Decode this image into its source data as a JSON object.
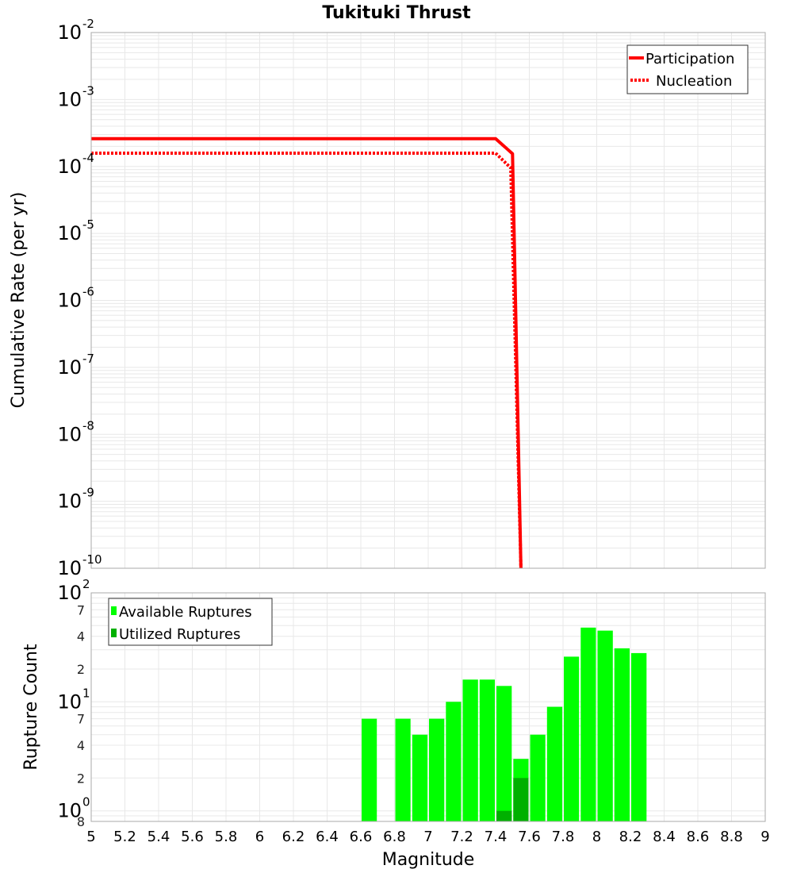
{
  "chart_data": [
    {
      "type": "line",
      "title": "Tukituki Thrust",
      "xlabel": "",
      "ylabel": "Cumulative Rate (per yr)",
      "yscale": "log",
      "xlim": [
        5,
        9
      ],
      "ylim": [
        1e-10,
        0.01
      ],
      "grid": true,
      "legend_position": "upper-right",
      "y_ticks": [
        "10^-2",
        "10^-3",
        "10^-4",
        "10^-5",
        "10^-6",
        "10^-7",
        "10^-8",
        "10^-9",
        "10^-10"
      ],
      "series": [
        {
          "name": "Participation",
          "style": "solid",
          "color": "#ff0000",
          "x": [
            5.0,
            7.4,
            7.5,
            7.55
          ],
          "y": [
            0.00026,
            0.00026,
            0.000155,
            1e-10
          ]
        },
        {
          "name": "Nucleation",
          "style": "dotted",
          "color": "#ff0000",
          "x": [
            5.0,
            7.4,
            7.49,
            7.55
          ],
          "y": [
            0.000158,
            0.000158,
            9.5e-05,
            1e-10
          ]
        }
      ]
    },
    {
      "type": "bar",
      "title": "",
      "xlabel": "Magnitude",
      "ylabel": "Rupture Count",
      "yscale": "log",
      "xlim": [
        5,
        9
      ],
      "ylim": [
        0.8,
        100
      ],
      "grid": true,
      "legend_position": "upper-left",
      "bin_width": 0.1,
      "x_ticks": [
        "5",
        "5.2",
        "5.4",
        "5.6",
        "5.8",
        "6",
        "6.2",
        "6.4",
        "6.6",
        "6.8",
        "7",
        "7.2",
        "7.4",
        "7.6",
        "7.8",
        "8",
        "8.2",
        "8.4",
        "8.6",
        "8.8",
        "9"
      ],
      "y_ticks_major": [
        "10^0",
        "10^1",
        "10^2"
      ],
      "y_ticks_minor": [
        "8",
        "2",
        "4",
        "7",
        "2",
        "4",
        "7"
      ],
      "categories": [
        6.65,
        6.85,
        6.95,
        7.05,
        7.15,
        7.25,
        7.35,
        7.45,
        7.55,
        7.65,
        7.75,
        7.85,
        7.95,
        8.05,
        8.15,
        8.25
      ],
      "series": [
        {
          "name": "Available Ruptures",
          "color": "#00ff00",
          "values": [
            7,
            7,
            5,
            7,
            10,
            16,
            16,
            14,
            3,
            5,
            9,
            26,
            48,
            45,
            31,
            28
          ]
        },
        {
          "name": "Utilized Ruptures",
          "color": "#00b000",
          "values": [
            0,
            0,
            0,
            0,
            0,
            0,
            0,
            1,
            2,
            0,
            0,
            0,
            0,
            0,
            0,
            0
          ]
        }
      ]
    }
  ],
  "labels": {
    "title": "Tukituki Thrust",
    "top_ylabel": "Cumulative Rate (per yr)",
    "bottom_ylabel": "Rupture Count",
    "xlabel": "Magnitude",
    "legend_top": [
      "Participation",
      "Nucleation"
    ],
    "legend_bottom": [
      "Available Ruptures",
      "Utilized Ruptures"
    ]
  },
  "colors": {
    "line": "#ff0000",
    "available": "#00ff00",
    "utilized": "#00b000",
    "grid": "#e8e8e8",
    "frame": "#aaaaaa"
  }
}
